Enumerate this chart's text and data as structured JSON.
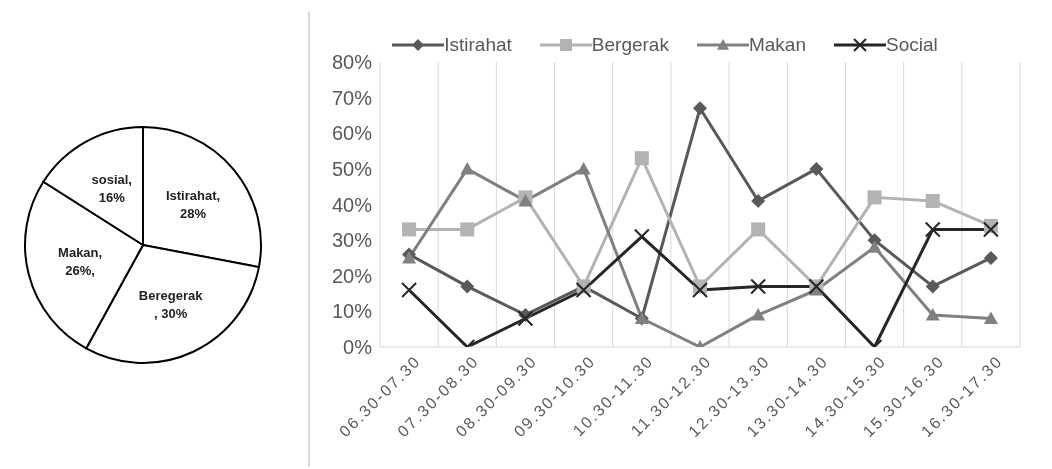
{
  "chart_data": [
    {
      "type": "pie",
      "categories": [
        "Istirahat",
        "Beregerak",
        "Makan",
        "sosial"
      ],
      "values": [
        28,
        30,
        26,
        16
      ],
      "value_labels": [
        ",\n28%",
        "\n, 30%",
        ",\n26%,",
        ",\n16%"
      ],
      "colors": [
        "#ffffff",
        "#ffffff",
        "#ffffff",
        "#ffffff"
      ]
    },
    {
      "type": "line",
      "categories": [
        "06.30-07.30",
        "07.30-08.30",
        "08.30-09.30",
        "09.30-10.30",
        "10.30-11.30",
        "11.30-12.30",
        "12.30-13.30",
        "13.30-14.30",
        "14.30-15.30",
        "15.30-16.30",
        "16.30-17.30"
      ],
      "series": [
        {
          "name": "Istirahat",
          "color": "#595959",
          "marker": "diamond",
          "values": [
            26,
            17,
            9,
            17,
            8,
            67,
            41,
            50,
            30,
            17,
            25
          ]
        },
        {
          "name": "Bergerak",
          "color": "#b3b3b3",
          "marker": "square",
          "values": [
            33,
            33,
            42,
            17,
            53,
            17,
            33,
            17,
            42,
            41,
            34
          ]
        },
        {
          "name": "Makan",
          "color": "#808080",
          "marker": "triangle",
          "values": [
            25,
            50,
            41,
            50,
            8,
            0,
            9,
            16,
            28,
            9,
            8
          ]
        },
        {
          "name": "Social",
          "color": "#262626",
          "marker": "cross",
          "values": [
            16,
            0,
            8,
            16,
            31,
            16,
            17,
            17,
            0,
            33,
            33
          ]
        }
      ],
      "ylim": [
        0,
        80
      ],
      "yticks": [
        {
          "value": 0,
          "label": "0%"
        },
        {
          "value": 10,
          "label": "10%"
        },
        {
          "value": 20,
          "label": "20%"
        },
        {
          "value": 30,
          "label": "30%"
        },
        {
          "value": 40,
          "label": "40%"
        },
        {
          "value": 50,
          "label": "50%"
        },
        {
          "value": 60,
          "label": "60%"
        },
        {
          "value": 70,
          "label": "70%"
        },
        {
          "value": 80,
          "label": "80%"
        }
      ],
      "grid": "x",
      "legend": "top",
      "line_style": "solid"
    }
  ]
}
